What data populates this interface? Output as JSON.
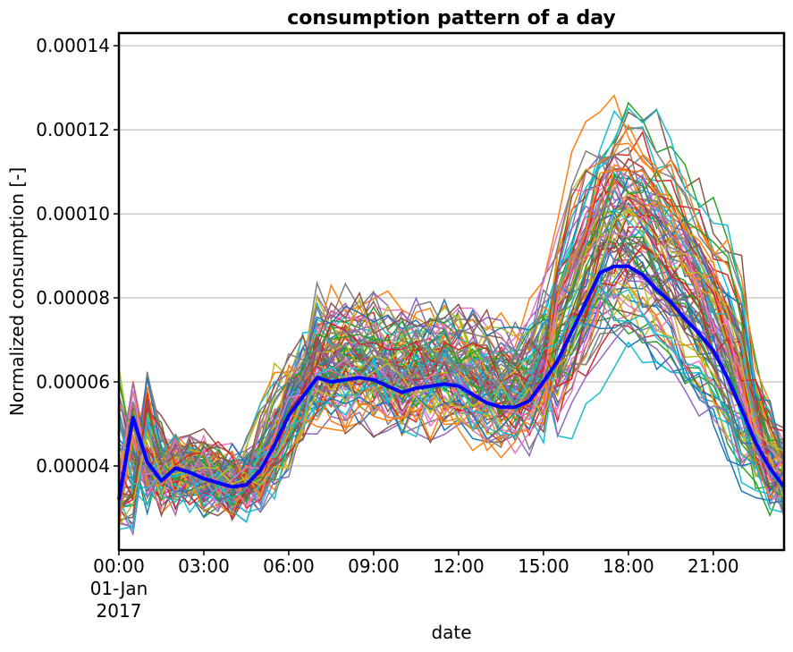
{
  "chart_data": {
    "type": "line",
    "title": "consumption pattern of a day",
    "xlabel": "date",
    "ylabel": "Normalized consumption [-]",
    "x_tick_labels": [
      "00:00",
      "03:00",
      "06:00",
      "09:00",
      "12:00",
      "15:00",
      "18:00",
      "21:00"
    ],
    "x_tick_hours": [
      0,
      3,
      6,
      9,
      12,
      15,
      18,
      21
    ],
    "x_date_label_line2": "01-Jan",
    "x_date_label_line3": "2017",
    "xlim_hours": [
      0,
      23.5
    ],
    "y_tick_labels": [
      "0.00004",
      "0.00006",
      "0.00008",
      "0.00010",
      "0.00012",
      "0.00014"
    ],
    "y_ticks": [
      4e-05,
      6e-05,
      8e-05,
      0.0001,
      0.00012,
      0.00014
    ],
    "ylim": [
      2e-05,
      0.000143
    ],
    "grid": "y",
    "x_hours": [
      0,
      0.5,
      1,
      1.5,
      2,
      2.5,
      3,
      3.5,
      4,
      4.5,
      5,
      5.5,
      6,
      6.5,
      7,
      7.5,
      8,
      8.5,
      9,
      9.5,
      10,
      10.5,
      11,
      11.5,
      12,
      12.5,
      13,
      13.5,
      14,
      14.5,
      15,
      15.5,
      16,
      16.5,
      17,
      17.5,
      18,
      18.5,
      19,
      19.5,
      20,
      20.5,
      21,
      21.5,
      22,
      22.5,
      23,
      23.5
    ],
    "mean_series": {
      "color": "#0000ff",
      "values": [
        3.2e-05,
        5.15e-05,
        4.1e-05,
        3.65e-05,
        3.95e-05,
        3.85e-05,
        3.7e-05,
        3.6e-05,
        3.5e-05,
        3.55e-05,
        3.9e-05,
        4.5e-05,
        5.2e-05,
        5.65e-05,
        6.1e-05,
        6e-05,
        6.05e-05,
        6.1e-05,
        6.05e-05,
        5.9e-05,
        5.75e-05,
        5.85e-05,
        5.9e-05,
        5.95e-05,
        5.9e-05,
        5.7e-05,
        5.5e-05,
        5.4e-05,
        5.4e-05,
        5.55e-05,
        6e-05,
        6.5e-05,
        7.2e-05,
        7.9e-05,
        8.6e-05,
        8.75e-05,
        8.75e-05,
        8.55e-05,
        8.2e-05,
        7.9e-05,
        7.5e-05,
        7.15e-05,
        6.75e-05,
        6.1e-05,
        5.35e-05,
        4.55e-05,
        3.95e-05,
        3.5e-05
      ]
    },
    "palette": [
      "#1f77b4",
      "#ff7f0e",
      "#2ca02c",
      "#d62728",
      "#9467bd",
      "#8c564b",
      "#e377c2",
      "#7f7f7f",
      "#bcbd22",
      "#17becf"
    ],
    "daily_series_count": 100
  }
}
